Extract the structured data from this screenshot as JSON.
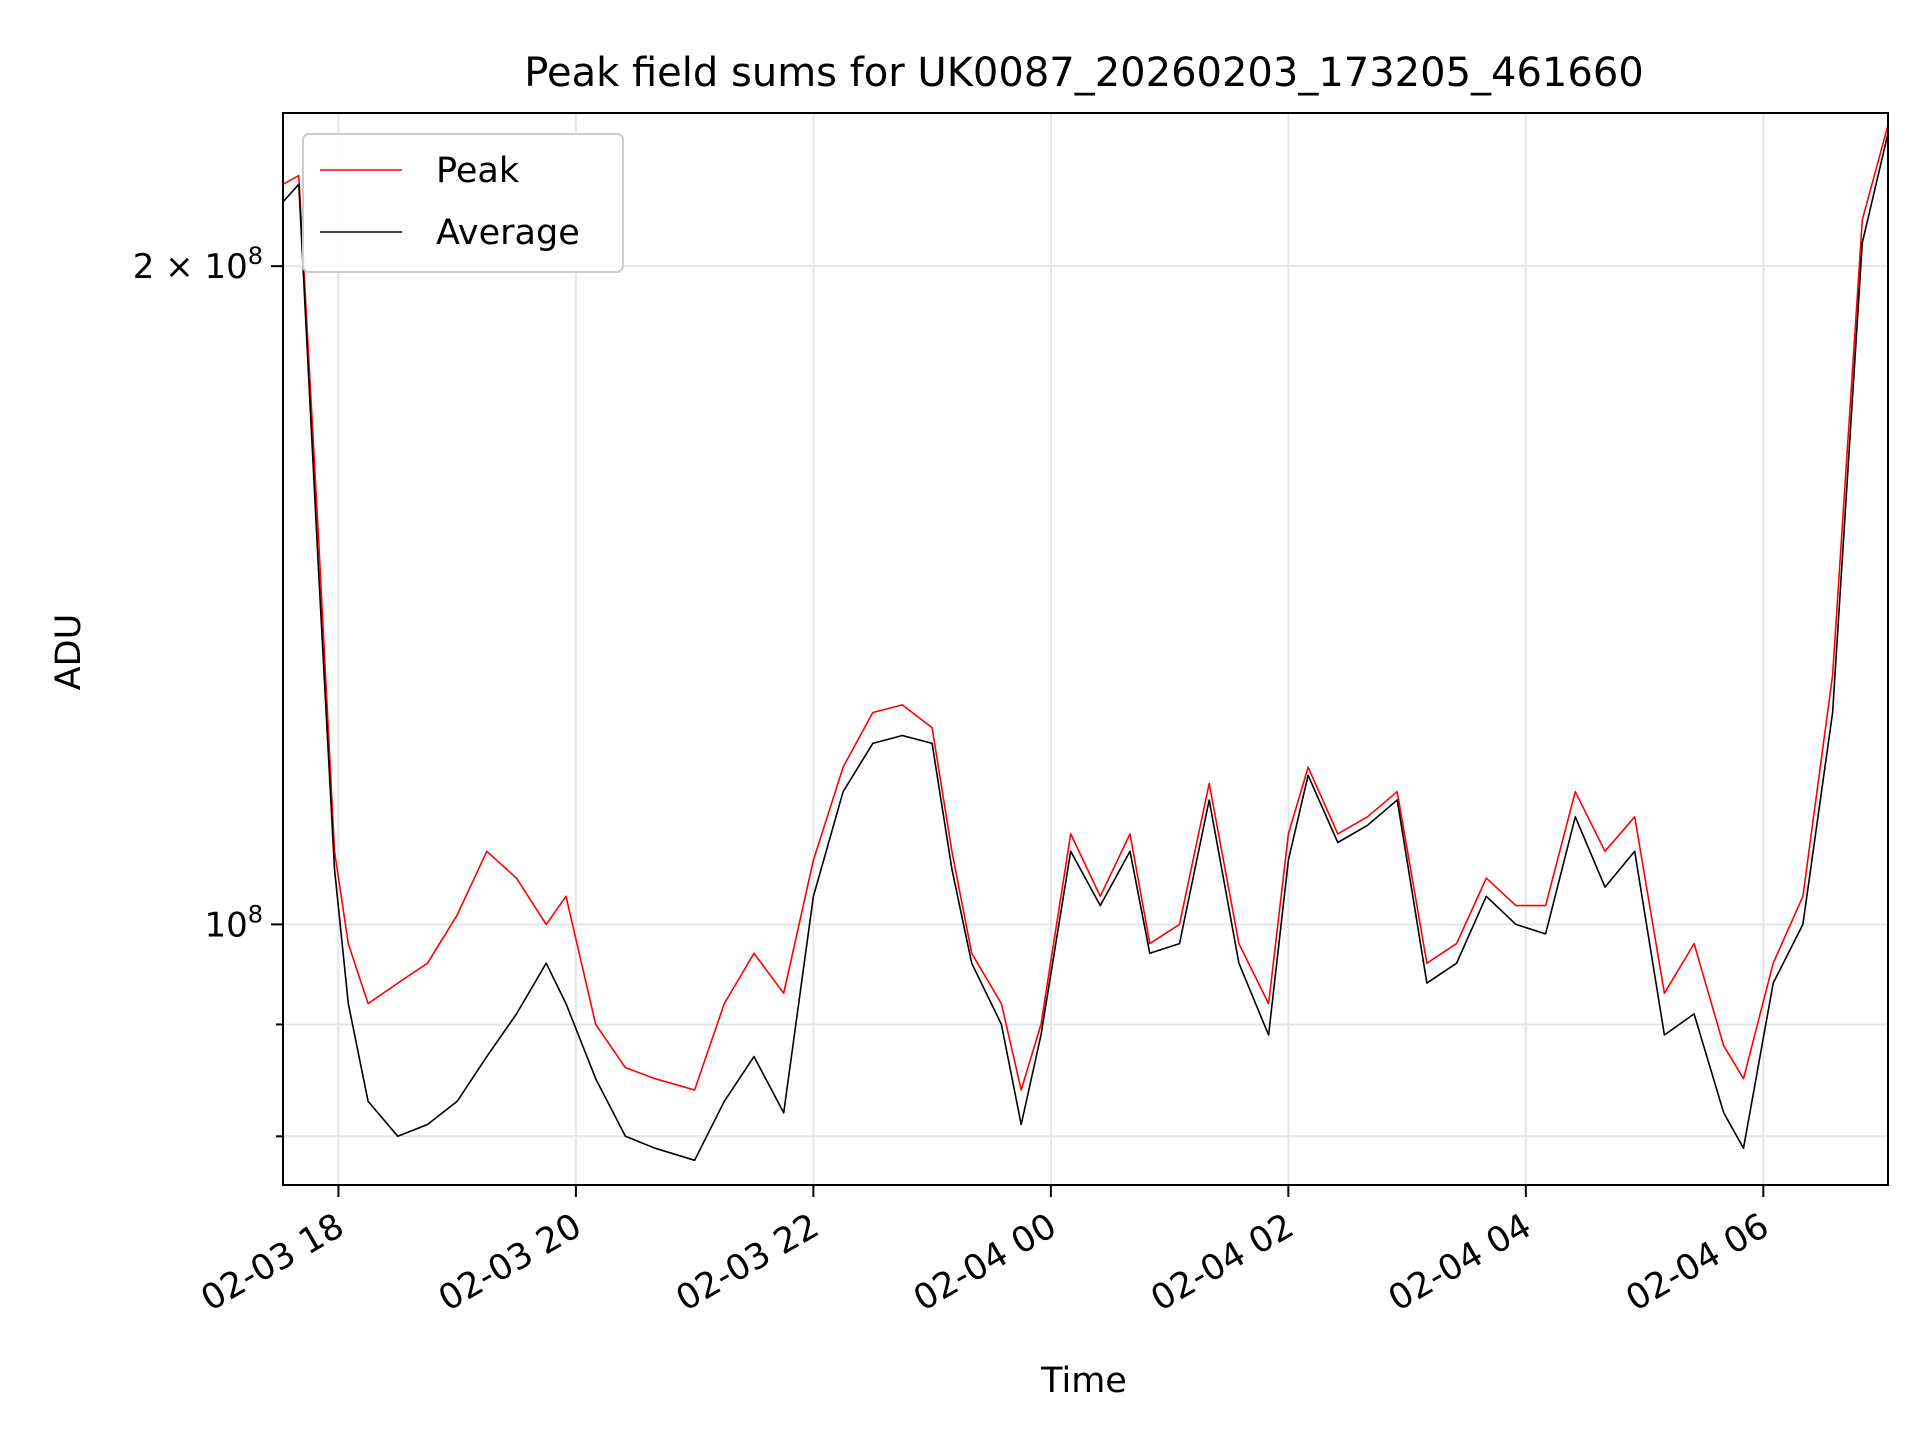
{
  "chart_data": {
    "type": "line",
    "title": "Peak field sums for UK0087_20260203_173205_461660",
    "xlabel": "Time",
    "ylabel": "ADU",
    "y_scale": "log",
    "xlim": [
      "2026-02-03 17:32",
      "2026-02-04 07:03"
    ],
    "ylim": [
      76000000,
      235000000
    ],
    "grid": true,
    "legend_position": "top-left",
    "x_ticks": [
      {
        "value": "2026-02-03 18:00",
        "label": "02-03 18"
      },
      {
        "value": "2026-02-03 20:00",
        "label": "02-03 20"
      },
      {
        "value": "2026-02-03 22:00",
        "label": "02-03 22"
      },
      {
        "value": "2026-02-04 00:00",
        "label": "02-04 00"
      },
      {
        "value": "2026-02-04 02:00",
        "label": "02-04 02"
      },
      {
        "value": "2026-02-04 04:00",
        "label": "02-04 04"
      },
      {
        "value": "2026-02-04 06:00",
        "label": "02-04 06"
      }
    ],
    "y_major_ticks": [
      {
        "value": 100000000,
        "base": "10",
        "exp": "8"
      },
      {
        "value": 200000000,
        "mantissa": "2",
        "times": "×",
        "base": "10",
        "exp": "8"
      }
    ],
    "y_minor_ticks": [
      80000000,
      90000000
    ],
    "series": [
      {
        "name": "Peak",
        "color": "#ff0000",
        "x": [
          "2026-02-03 17:32",
          "2026-02-03 17:40",
          "2026-02-03 17:50",
          "2026-02-03 17:58",
          "2026-02-03 18:05",
          "2026-02-03 18:15",
          "2026-02-03 18:30",
          "2026-02-03 18:45",
          "2026-02-03 19:00",
          "2026-02-03 19:15",
          "2026-02-03 19:30",
          "2026-02-03 19:45",
          "2026-02-03 19:55",
          "2026-02-03 20:10",
          "2026-02-03 20:25",
          "2026-02-03 20:40",
          "2026-02-03 21:00",
          "2026-02-03 21:15",
          "2026-02-03 21:30",
          "2026-02-03 21:45",
          "2026-02-03 22:00",
          "2026-02-03 22:15",
          "2026-02-03 22:30",
          "2026-02-03 22:45",
          "2026-02-03 23:00",
          "2026-02-03 23:10",
          "2026-02-03 23:20",
          "2026-02-03 23:35",
          "2026-02-03 23:45",
          "2026-02-03 23:55",
          "2026-02-04 00:10",
          "2026-02-04 00:25",
          "2026-02-04 00:40",
          "2026-02-04 00:50",
          "2026-02-04 01:05",
          "2026-02-04 01:20",
          "2026-02-04 01:35",
          "2026-02-04 01:50",
          "2026-02-04 02:00",
          "2026-02-04 02:10",
          "2026-02-04 02:25",
          "2026-02-04 02:40",
          "2026-02-04 02:55",
          "2026-02-04 03:10",
          "2026-02-04 03:25",
          "2026-02-04 03:40",
          "2026-02-04 03:55",
          "2026-02-04 04:10",
          "2026-02-04 04:25",
          "2026-02-04 04:40",
          "2026-02-04 04:55",
          "2026-02-04 05:10",
          "2026-02-04 05:25",
          "2026-02-04 05:40",
          "2026-02-04 05:50",
          "2026-02-04 06:05",
          "2026-02-04 06:20",
          "2026-02-04 06:35",
          "2026-02-04 06:50",
          "2026-02-04 07:03"
        ],
        "y": [
          218000000,
          220000000,
          150000000,
          108000000,
          98000000,
          92000000,
          94000000,
          96000000,
          101000000,
          108000000,
          105000000,
          100000000,
          103000000,
          90000000,
          86000000,
          85000000,
          84000000,
          92000000,
          97000000,
          93000000,
          107000000,
          118000000,
          125000000,
          126000000,
          123000000,
          108000000,
          97000000,
          92000000,
          84000000,
          90000000,
          110000000,
          103000000,
          110000000,
          98000000,
          100000000,
          116000000,
          98000000,
          92000000,
          110000000,
          118000000,
          110000000,
          112000000,
          115000000,
          96000000,
          98000000,
          105000000,
          102000000,
          102000000,
          115000000,
          108000000,
          112000000,
          93000000,
          98000000,
          88000000,
          85000000,
          96000000,
          103000000,
          130000000,
          210000000,
          232000000
        ]
      },
      {
        "name": "Average",
        "color": "#000000",
        "x": [
          "2026-02-03 17:32",
          "2026-02-03 17:40",
          "2026-02-03 17:50",
          "2026-02-03 17:58",
          "2026-02-03 18:05",
          "2026-02-03 18:15",
          "2026-02-03 18:30",
          "2026-02-03 18:45",
          "2026-02-03 19:00",
          "2026-02-03 19:15",
          "2026-02-03 19:30",
          "2026-02-03 19:45",
          "2026-02-03 19:55",
          "2026-02-03 20:10",
          "2026-02-03 20:25",
          "2026-02-03 20:40",
          "2026-02-03 21:00",
          "2026-02-03 21:15",
          "2026-02-03 21:30",
          "2026-02-03 21:45",
          "2026-02-03 22:00",
          "2026-02-03 22:15",
          "2026-02-03 22:30",
          "2026-02-03 22:45",
          "2026-02-03 23:00",
          "2026-02-03 23:10",
          "2026-02-03 23:20",
          "2026-02-03 23:35",
          "2026-02-03 23:45",
          "2026-02-03 23:55",
          "2026-02-04 00:10",
          "2026-02-04 00:25",
          "2026-02-04 00:40",
          "2026-02-04 00:50",
          "2026-02-04 01:05",
          "2026-02-04 01:20",
          "2026-02-04 01:35",
          "2026-02-04 01:50",
          "2026-02-04 02:00",
          "2026-02-04 02:10",
          "2026-02-04 02:25",
          "2026-02-04 02:40",
          "2026-02-04 02:55",
          "2026-02-04 03:10",
          "2026-02-04 03:25",
          "2026-02-04 03:40",
          "2026-02-04 03:55",
          "2026-02-04 04:10",
          "2026-02-04 04:25",
          "2026-02-04 04:40",
          "2026-02-04 04:55",
          "2026-02-04 05:10",
          "2026-02-04 05:25",
          "2026-02-04 05:40",
          "2026-02-04 05:50",
          "2026-02-04 06:05",
          "2026-02-04 06:20",
          "2026-02-04 06:35",
          "2026-02-04 06:50",
          "2026-02-04 07:03"
        ],
        "y": [
          214000000,
          218000000,
          145000000,
          106000000,
          92000000,
          83000000,
          80000000,
          81000000,
          83000000,
          87000000,
          91000000,
          96000000,
          92000000,
          85000000,
          80000000,
          79000000,
          78000000,
          83000000,
          87000000,
          82000000,
          103000000,
          115000000,
          121000000,
          122000000,
          121000000,
          106000000,
          96000000,
          90000000,
          81000000,
          89000000,
          108000000,
          102000000,
          108000000,
          97000000,
          98000000,
          114000000,
          96000000,
          89000000,
          107000000,
          117000000,
          109000000,
          111000000,
          114000000,
          94000000,
          96000000,
          103000000,
          100000000,
          99000000,
          112000000,
          104000000,
          108000000,
          89000000,
          91000000,
          82000000,
          79000000,
          94000000,
          100000000,
          125000000,
          205000000,
          230000000
        ]
      }
    ]
  }
}
